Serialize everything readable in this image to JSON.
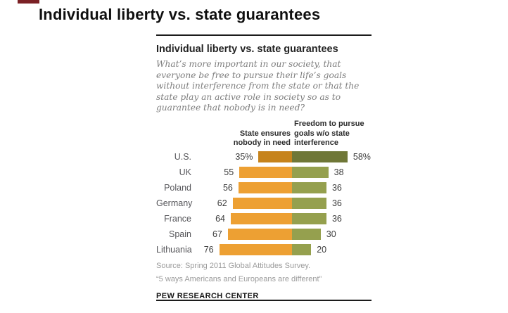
{
  "page": {
    "title": "Individual liberty vs. state guarantees"
  },
  "artifact": {
    "color": "#7b2125"
  },
  "card": {
    "title": "Individual liberty vs. state guarantees",
    "subtitle": "What’s more important in our society, that everyone be free to pursue their life’s goals without interference from the state or that the state play an active role in society so as to guarantee that nobody is in need?",
    "source_line1": "Source: Spring 2011 Global Attitudes Survey.",
    "source_line2": "“5 ways Americans and Europeans are different”",
    "branding": "PEW RESEARCH CENTER"
  },
  "chart_data": {
    "type": "bar",
    "subtype": "diverging-horizontal",
    "title": "Individual liberty vs. state guarantees",
    "left_header": "State ensures\nnobody in need",
    "right_header": "Freedom to pursue\ngoals w/o state\ninterference",
    "categories": [
      "U.S.",
      "UK",
      "Poland",
      "Germany",
      "France",
      "Spain",
      "Lithuania"
    ],
    "series": [
      {
        "name": "State ensures nobody in need",
        "values": [
          35,
          55,
          56,
          62,
          64,
          67,
          76
        ]
      },
      {
        "name": "Freedom to pursue goals w/o state interference",
        "values": [
          58,
          38,
          36,
          36,
          36,
          30,
          20
        ]
      }
    ],
    "value_labels_left": [
      "35%",
      "55",
      "56",
      "62",
      "64",
      "67",
      "76"
    ],
    "value_labels_right": [
      "58%",
      "38",
      "36",
      "36",
      "36",
      "30",
      "20"
    ],
    "unit": "%",
    "emphasized_row": 0,
    "colors": {
      "left": "#eda033",
      "right": "#95a04e",
      "left_emphasis": "#c6831c",
      "right_emphasis": "#6f7737"
    },
    "legend_position": "top",
    "grid": false
  }
}
